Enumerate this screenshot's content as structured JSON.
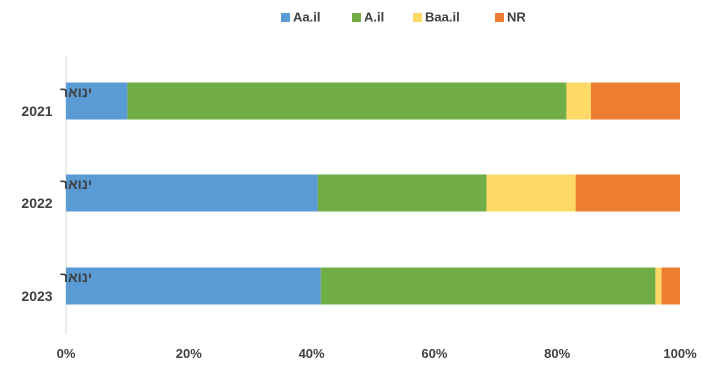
{
  "chart_data": {
    "type": "bar",
    "orientation": "horizontal",
    "stacked": "percent",
    "categories": [
      [
        "ינואר",
        "2021"
      ],
      [
        "ינואר",
        "2022"
      ],
      [
        "ינואר",
        "2023"
      ]
    ],
    "series": [
      {
        "name": "Aa.il",
        "color": "#5B9BD5",
        "values": [
          10,
          41,
          41.5
        ]
      },
      {
        "name": "A.il",
        "color": "#70AD47",
        "values": [
          71.5,
          27.5,
          54.5
        ]
      },
      {
        "name": "Baa.il",
        "color": "#FFD966",
        "values": [
          4,
          14.5,
          1
        ]
      },
      {
        "name": "NR",
        "color": "#ED7D31",
        "values": [
          14.5,
          17,
          3
        ]
      }
    ],
    "xlim": [
      0,
      100
    ],
    "xticks": [
      "0%",
      "20%",
      "40%",
      "60%",
      "80%",
      "100%"
    ],
    "grid": false,
    "legend_position": "top"
  }
}
